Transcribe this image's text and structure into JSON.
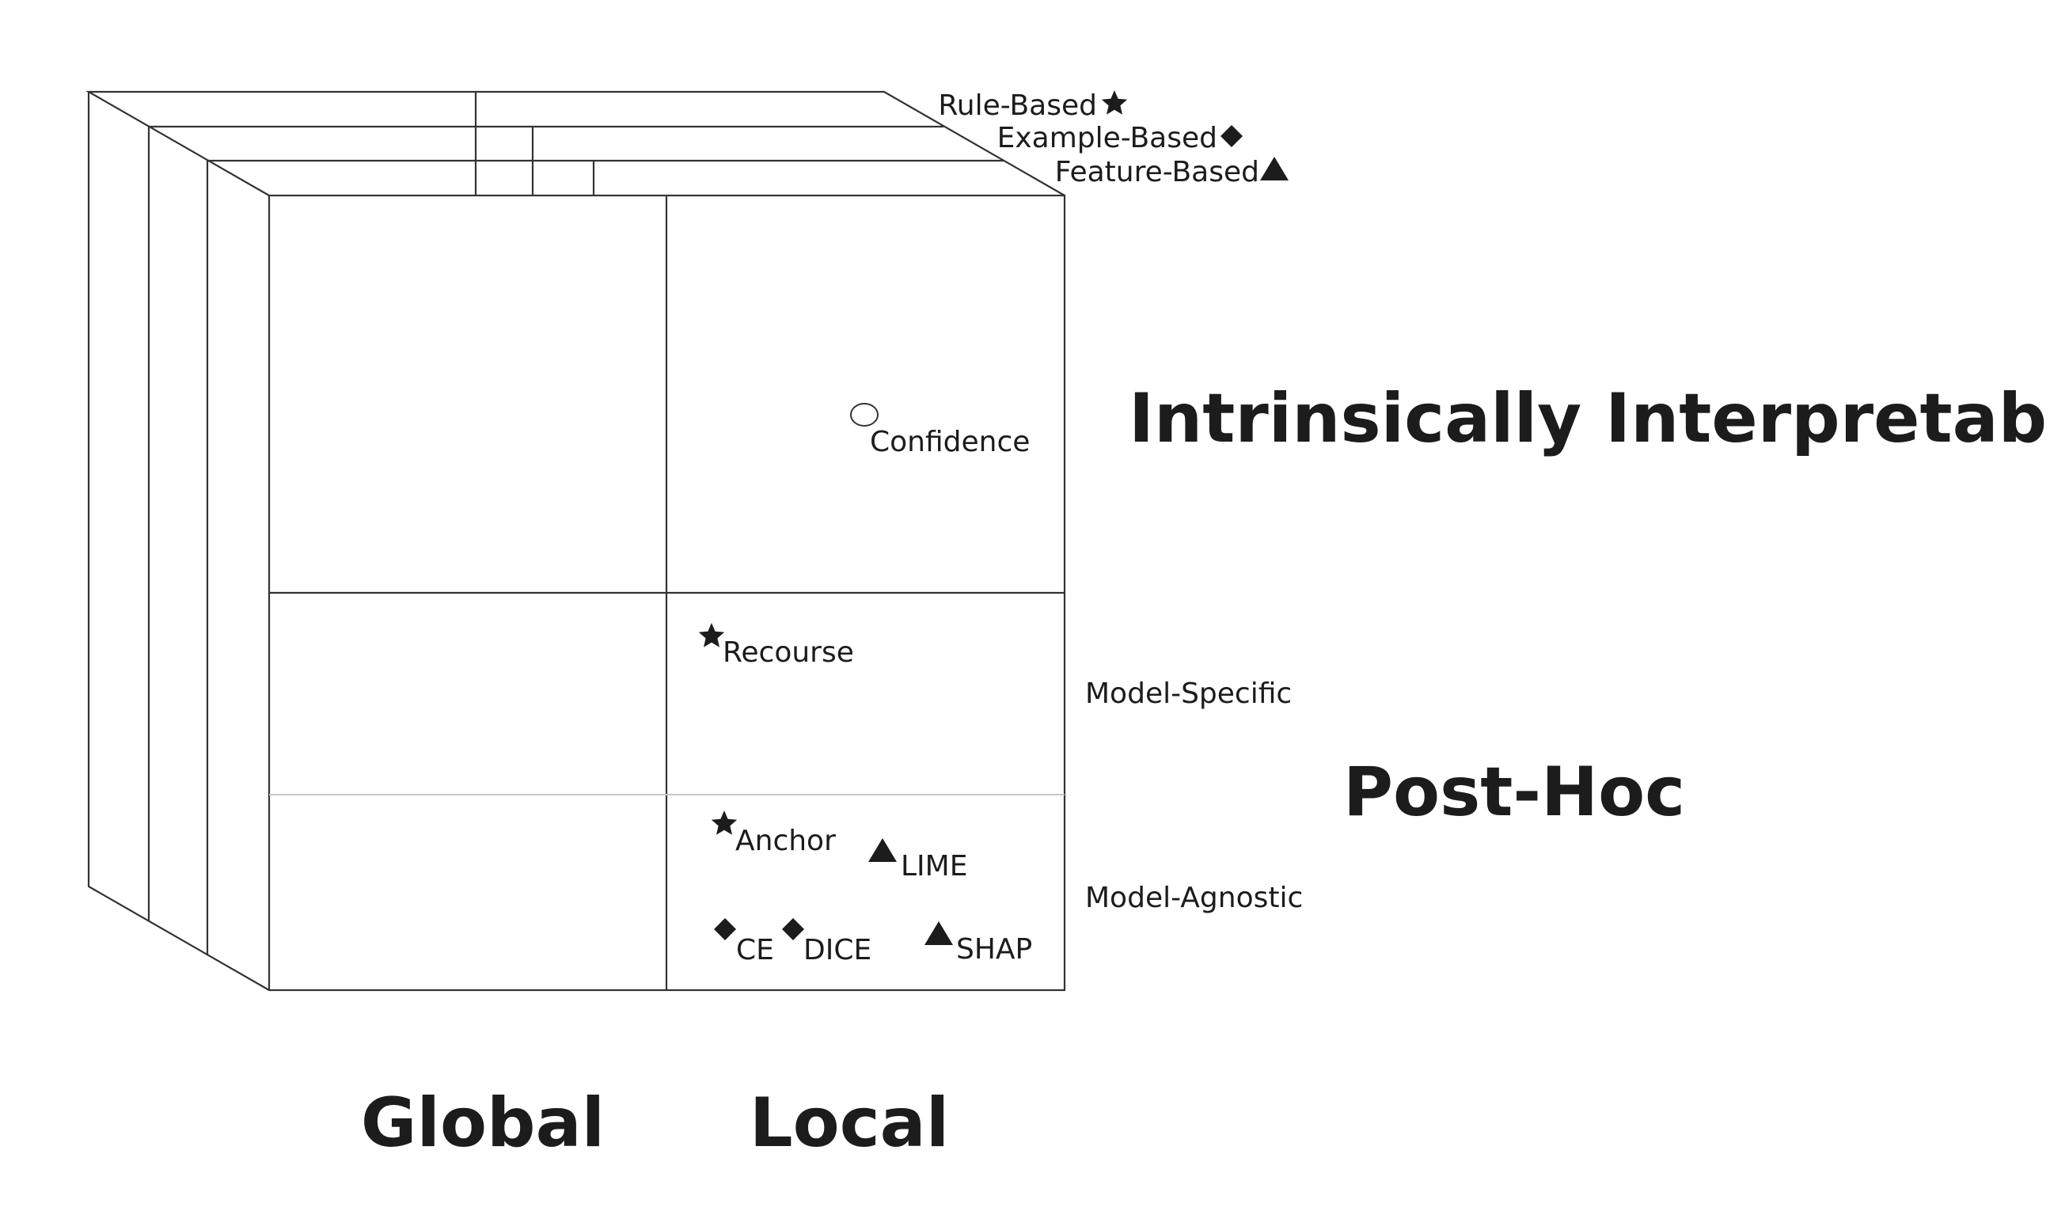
{
  "legend": {
    "rule_based": "Rule-Based",
    "example_based": "Example-Based",
    "feature_based": "Feature-Based"
  },
  "rows": {
    "intrinsic": "Intrinsically Interpretable",
    "post_hoc": "Post-Hoc",
    "model_specific": "Model-Specific",
    "model_agnostic": "Model-Agnostic"
  },
  "columns": {
    "global": "Global",
    "local": "Local"
  },
  "methods": {
    "confidence": "Confidence",
    "recourse": "Recourse",
    "anchor": "Anchor",
    "lime": "LIME",
    "ce": "CE",
    "dice": "DICE",
    "shap": "SHAP"
  },
  "marker_shapes": {
    "rule_based": "star-icon",
    "example_based": "diamond-icon",
    "feature_based": "triangle-icon",
    "confidence": "circle-icon"
  }
}
